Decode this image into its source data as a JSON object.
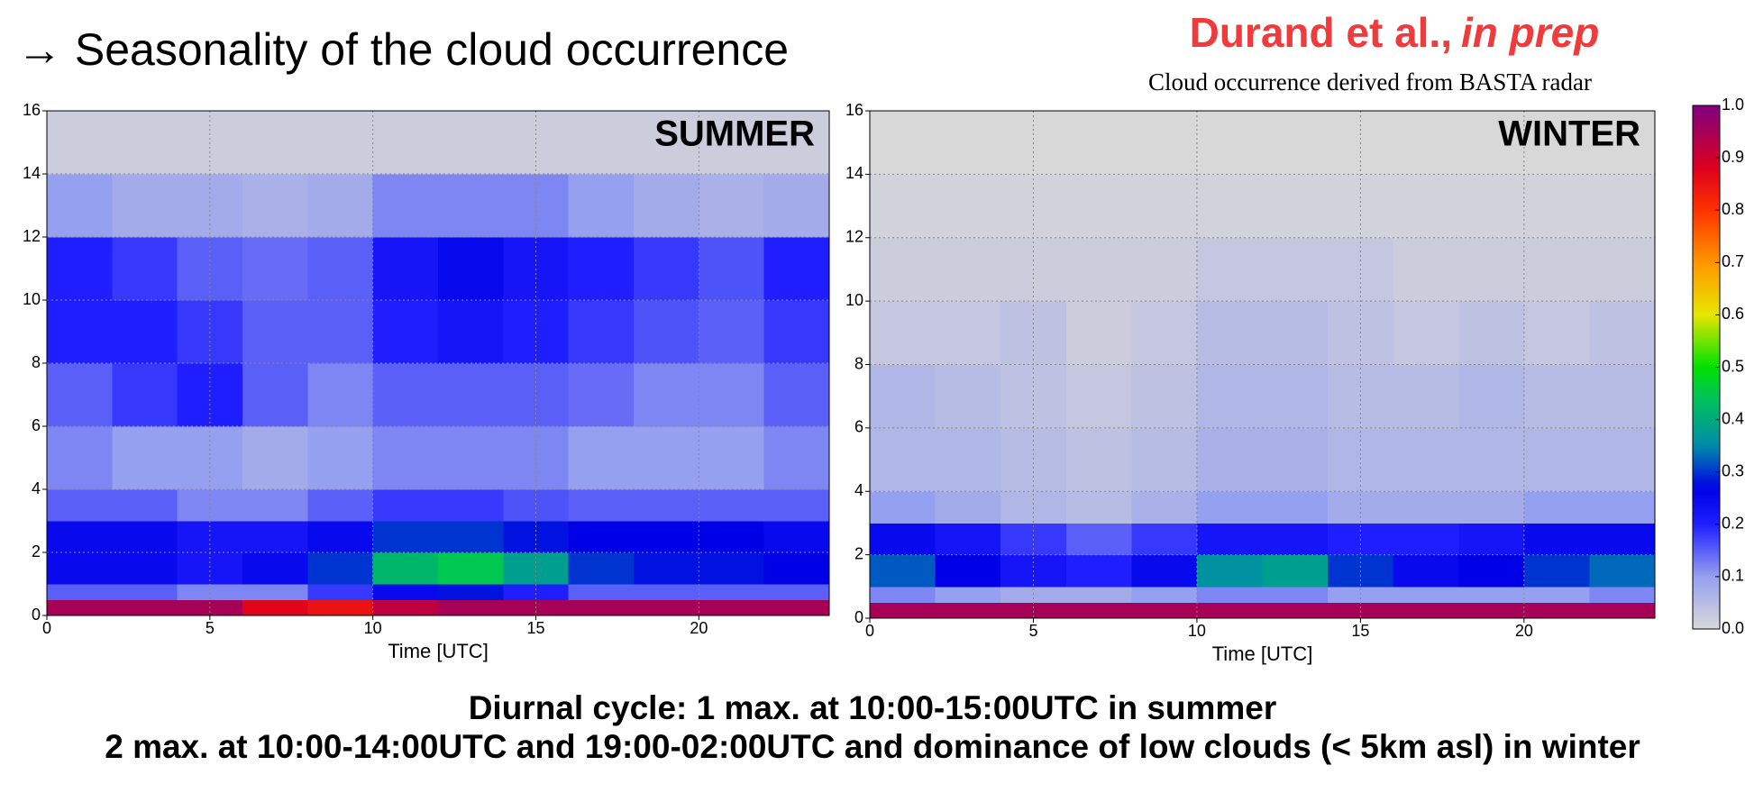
{
  "slide": {
    "title": "→ Seasonality of the cloud occurrence",
    "author": "Durand et al.,",
    "author_note": "in prep",
    "subtitle": "Cloud occurrence derived from BASTA radar",
    "footer": [
      "Diurnal cycle: 1 max. at 10:00-15:00UTC in summer",
      "2 max. at 10:00-14:00UTC and 19:00-02:00UTC and dominance of low clouds  (< 5km asl) in winter"
    ]
  },
  "chart_data": [
    {
      "type": "heatmap",
      "title": "SUMMER",
      "xlabel": "Time [UTC]",
      "xlim": [
        0,
        24
      ],
      "xticks": [
        0,
        5,
        10,
        15,
        20
      ],
      "ylim": [
        0,
        16
      ],
      "yticks": [
        0,
        2,
        4,
        6,
        8,
        10,
        12,
        14,
        16
      ],
      "grid": true,
      "xbins": [
        0,
        2,
        4,
        6,
        8,
        10,
        12,
        14,
        16,
        18,
        20,
        22,
        24
      ],
      "ybins": [
        0,
        0.5,
        1,
        2,
        3,
        4,
        6,
        8,
        10,
        12,
        14,
        16
      ],
      "zlim": [
        0,
        1
      ],
      "z": [
        [
          0.95,
          0.95,
          0.95,
          0.87,
          0.85,
          0.92,
          0.95,
          0.95,
          0.95,
          0.95,
          0.95,
          0.95
        ],
        [
          0.15,
          0.15,
          0.12,
          0.12,
          0.18,
          0.25,
          0.28,
          0.2,
          0.15,
          0.15,
          0.15,
          0.15
        ],
        [
          0.25,
          0.25,
          0.22,
          0.25,
          0.3,
          0.42,
          0.45,
          0.38,
          0.3,
          0.28,
          0.28,
          0.27
        ],
        [
          0.25,
          0.25,
          0.22,
          0.22,
          0.25,
          0.3,
          0.3,
          0.28,
          0.27,
          0.27,
          0.27,
          0.25
        ],
        [
          0.15,
          0.15,
          0.12,
          0.12,
          0.15,
          0.18,
          0.18,
          0.16,
          0.15,
          0.15,
          0.15,
          0.15
        ],
        [
          0.12,
          0.1,
          0.1,
          0.08,
          0.1,
          0.12,
          0.12,
          0.12,
          0.1,
          0.1,
          0.1,
          0.12
        ],
        [
          0.15,
          0.18,
          0.2,
          0.15,
          0.12,
          0.15,
          0.15,
          0.15,
          0.14,
          0.12,
          0.12,
          0.15
        ],
        [
          0.2,
          0.2,
          0.18,
          0.15,
          0.15,
          0.2,
          0.22,
          0.2,
          0.18,
          0.16,
          0.15,
          0.18
        ],
        [
          0.2,
          0.18,
          0.15,
          0.14,
          0.15,
          0.22,
          0.25,
          0.22,
          0.2,
          0.18,
          0.16,
          0.2
        ],
        [
          0.1,
          0.08,
          0.08,
          0.07,
          0.08,
          0.12,
          0.12,
          0.12,
          0.1,
          0.08,
          0.07,
          0.08
        ],
        [
          0.02,
          0.02,
          0.02,
          0.02,
          0.02,
          0.02,
          0.02,
          0.02,
          0.02,
          0.02,
          0.02,
          0.02
        ]
      ]
    },
    {
      "type": "heatmap",
      "title": "WINTER",
      "xlabel": "Time [UTC]",
      "xlim": [
        0,
        24
      ],
      "xticks": [
        0,
        5,
        10,
        15,
        20
      ],
      "ylim": [
        0,
        16
      ],
      "yticks": [
        0,
        2,
        4,
        6,
        8,
        10,
        12,
        14,
        16
      ],
      "grid": true,
      "xbins": [
        0,
        2,
        4,
        6,
        8,
        10,
        12,
        14,
        16,
        18,
        20,
        22,
        24
      ],
      "ybins": [
        0,
        0.5,
        1,
        2,
        3,
        4,
        6,
        8,
        10,
        12,
        14,
        16
      ],
      "zlim": [
        0,
        1
      ],
      "zticks": [
        {
          "value": 0,
          "label": "0.0"
        },
        {
          "value": 0.1,
          "label": "0.1"
        },
        {
          "value": 0.2,
          "label": "0.2"
        },
        {
          "value": 0.3,
          "label": "0.3"
        },
        {
          "value": 0.4,
          "label": "0.4"
        },
        {
          "value": 0.5,
          "label": "0.5"
        },
        {
          "value": 0.6,
          "label": "0.6"
        },
        {
          "value": 0.7,
          "label": "0.7"
        },
        {
          "value": 0.8,
          "label": "0.8"
        },
        {
          "value": 0.9,
          "label": "0.9"
        },
        {
          "value": 1,
          "label": "1.0"
        }
      ],
      "z": [
        [
          0.95,
          0.95,
          0.95,
          0.95,
          0.95,
          0.95,
          0.95,
          0.95,
          0.95,
          0.95,
          0.95,
          0.95
        ],
        [
          0.12,
          0.1,
          0.08,
          0.08,
          0.1,
          0.12,
          0.12,
          0.1,
          0.1,
          0.1,
          0.1,
          0.12
        ],
        [
          0.32,
          0.27,
          0.22,
          0.2,
          0.25,
          0.36,
          0.38,
          0.3,
          0.25,
          0.27,
          0.3,
          0.33
        ],
        [
          0.25,
          0.22,
          0.18,
          0.15,
          0.18,
          0.22,
          0.22,
          0.2,
          0.2,
          0.22,
          0.25,
          0.25
        ],
        [
          0.1,
          0.08,
          0.06,
          0.05,
          0.07,
          0.1,
          0.1,
          0.08,
          0.08,
          0.08,
          0.1,
          0.1
        ],
        [
          0.06,
          0.06,
          0.05,
          0.04,
          0.05,
          0.07,
          0.07,
          0.06,
          0.06,
          0.06,
          0.06,
          0.06
        ],
        [
          0.06,
          0.05,
          0.04,
          0.03,
          0.04,
          0.06,
          0.06,
          0.05,
          0.05,
          0.06,
          0.05,
          0.05
        ],
        [
          0.03,
          0.03,
          0.04,
          0.02,
          0.03,
          0.05,
          0.05,
          0.04,
          0.03,
          0.04,
          0.03,
          0.04
        ],
        [
          0.02,
          0.02,
          0.02,
          0.02,
          0.02,
          0.03,
          0.03,
          0.03,
          0.02,
          0.02,
          0.02,
          0.02
        ],
        [
          0.01,
          0.01,
          0.01,
          0.01,
          0.01,
          0.01,
          0.01,
          0.01,
          0.01,
          0.01,
          0.01,
          0.01
        ],
        [
          0,
          0,
          0,
          0,
          0,
          0,
          0,
          0,
          0,
          0,
          0,
          0
        ]
      ]
    }
  ]
}
